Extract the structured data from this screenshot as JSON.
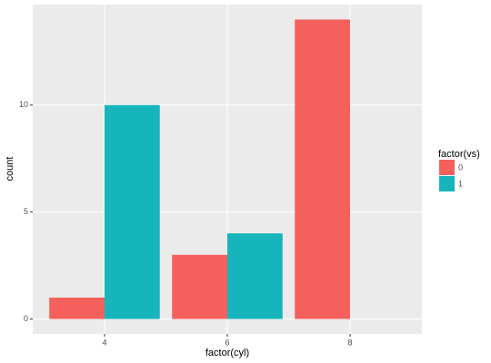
{
  "chart_data": {
    "type": "bar",
    "x_label": "factor(cyl)",
    "y_label": "count",
    "categories": [
      "4",
      "6",
      "8"
    ],
    "series": [
      {
        "name": "0",
        "color": "#f5605c",
        "values": [
          1,
          3,
          14
        ]
      },
      {
        "name": "1",
        "color": "#16b5bb",
        "values": [
          10,
          4,
          0
        ]
      }
    ],
    "legend_title": "factor(vs)",
    "legend_position": "right",
    "ylim": [
      -0.7,
      14.7
    ],
    "yticks": [
      0,
      5,
      10
    ],
    "grid": true
  }
}
